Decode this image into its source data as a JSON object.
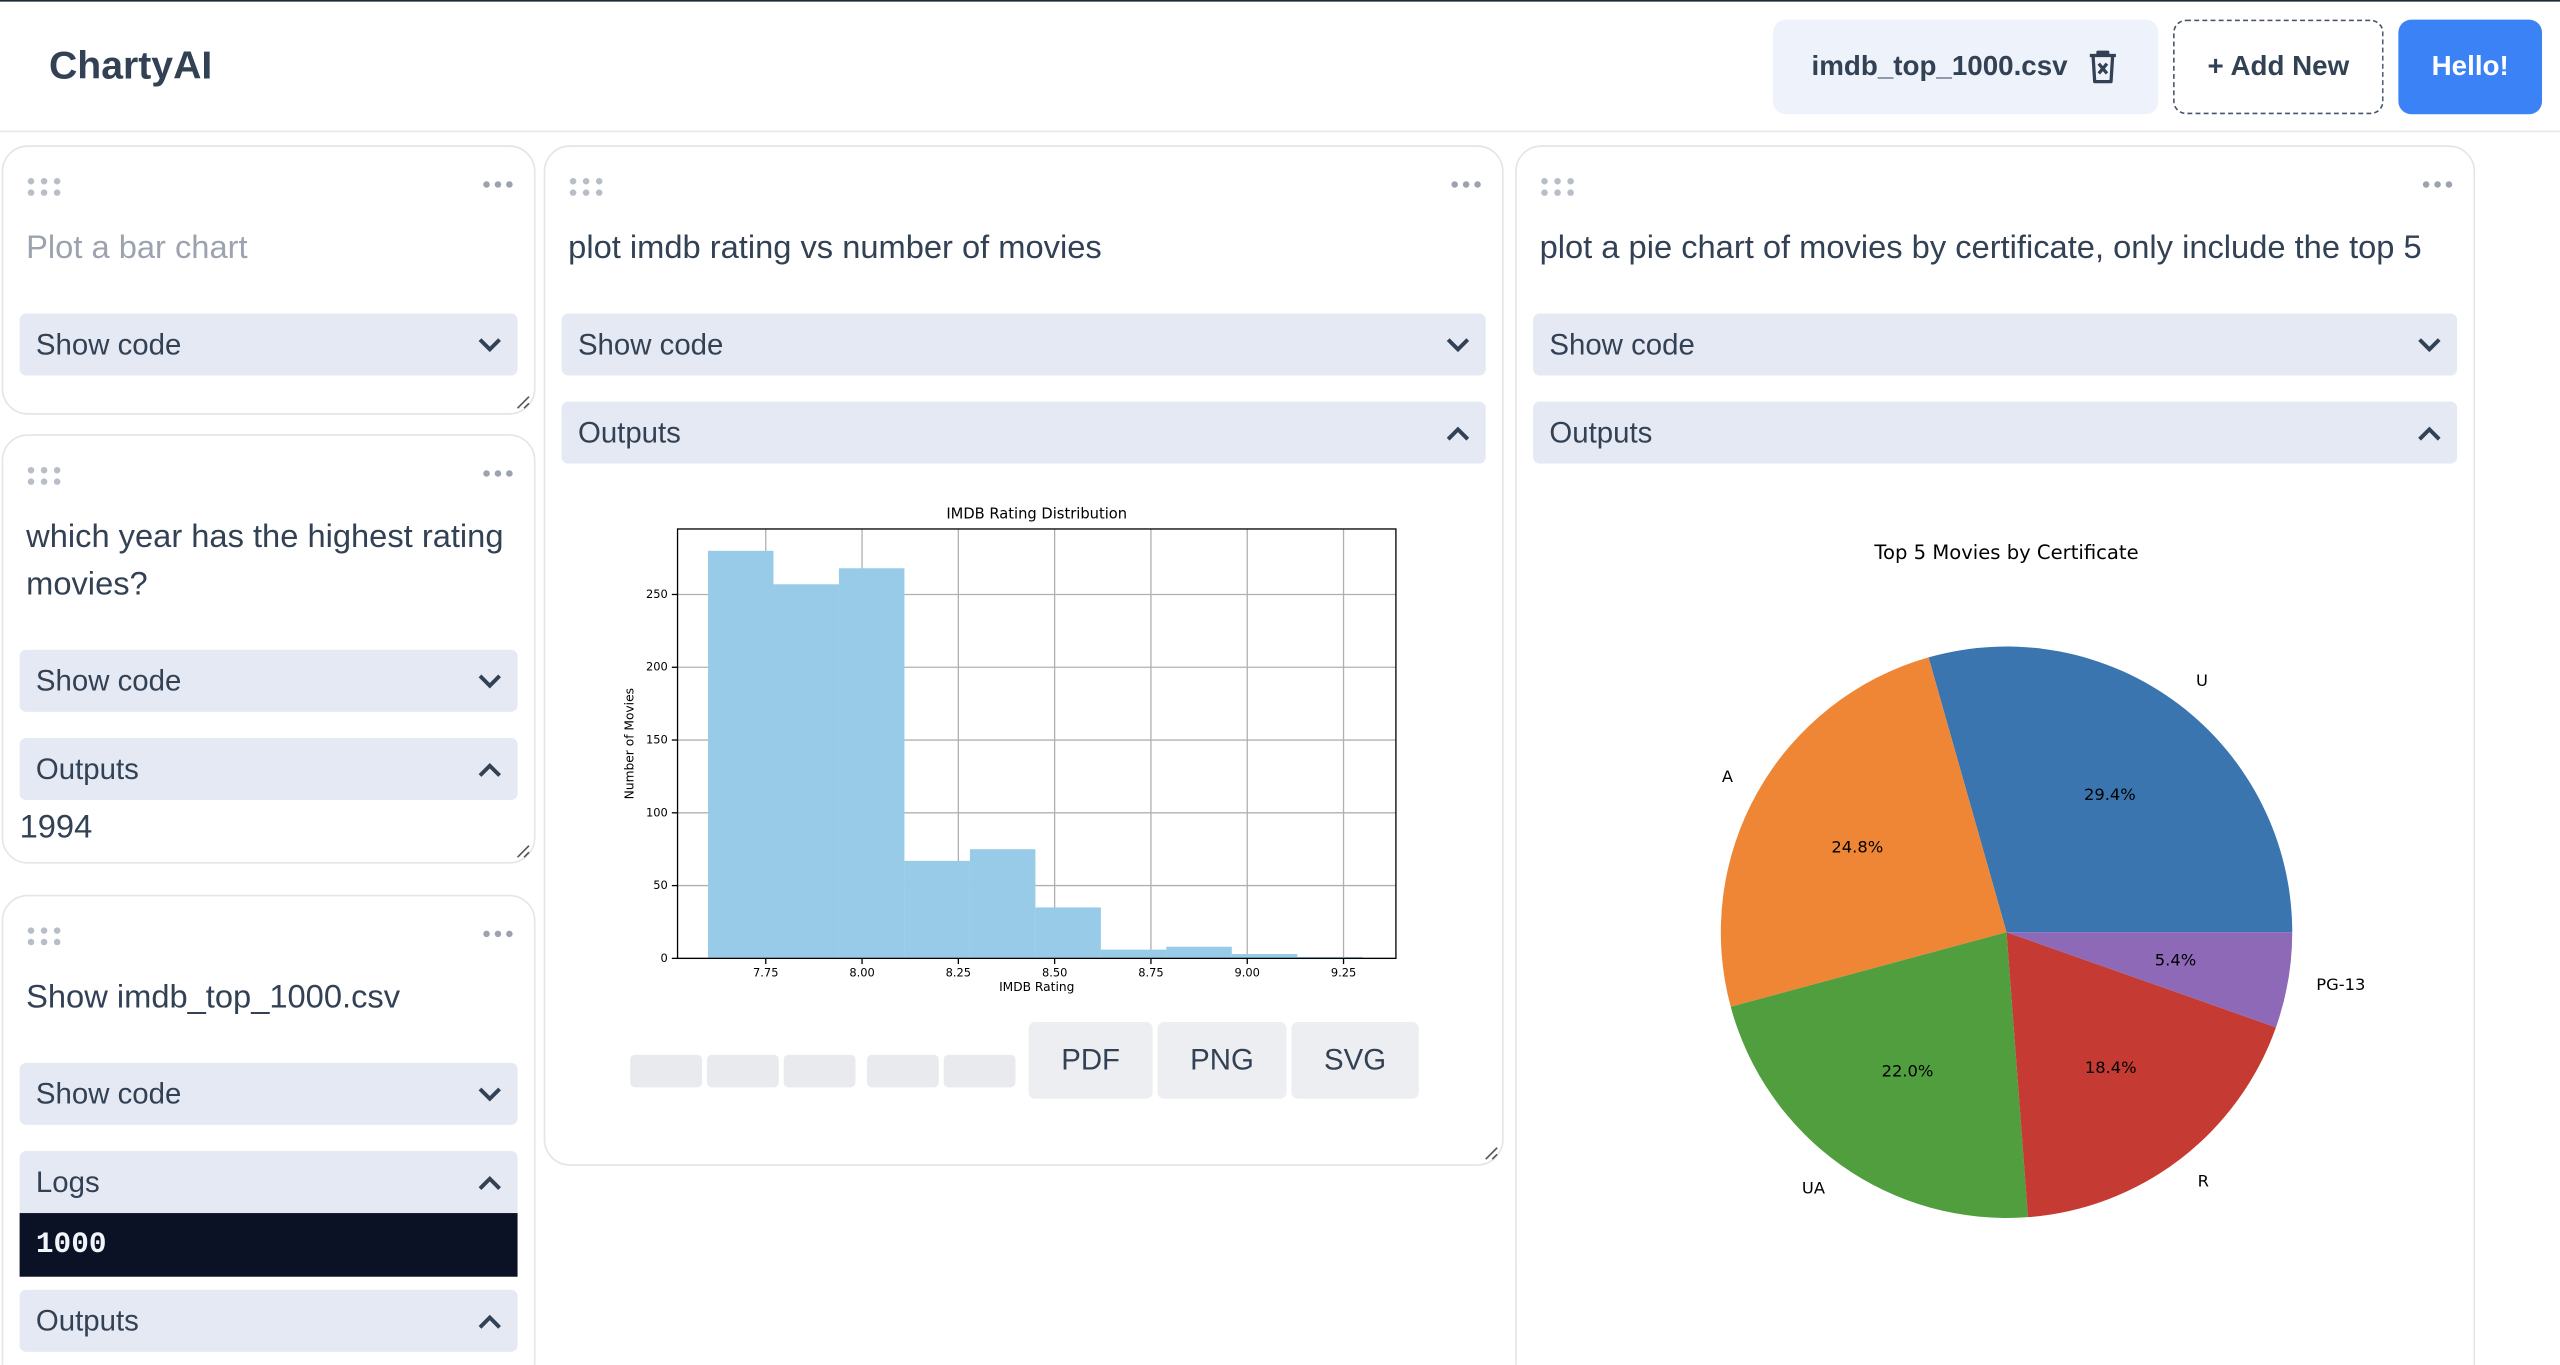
{
  "header": {
    "title": "ChartyAI",
    "file": "imdb_top_1000.csv",
    "add_button": "+ Add New",
    "user_button": "Hello!"
  },
  "cards": [
    {
      "prompt": "Plot a bar chart",
      "show_code": "Show code"
    },
    {
      "prompt": "which year has the highest rating movies?",
      "show_code": "Show code",
      "outputs_label": "Outputs",
      "output": "1994"
    },
    {
      "prompt": "Show imdb_top_1000.csv",
      "show_code": "Show code",
      "logs_label": "Logs",
      "logs": "1000",
      "outputs_label": "Outputs"
    },
    {
      "prompt": "plot imdb rating vs number of movies",
      "show_code": "Show code",
      "outputs_label": "Outputs",
      "export_buttons": [
        "PDF",
        "PNG",
        "SVG"
      ]
    },
    {
      "prompt": "plot a pie chart of movies by certificate, only include the top 5",
      "show_code": "Show code",
      "outputs_label": "Outputs"
    }
  ],
  "chart_data": [
    {
      "type": "histogram",
      "title": "IMDB Rating Distribution",
      "x_label": "IMDB Rating",
      "y_label": "Number of Movies",
      "bins": [
        7.6,
        7.77,
        7.94,
        8.11,
        8.28,
        8.45,
        8.62,
        8.79,
        8.96,
        9.13,
        9.3
      ],
      "values": [
        280,
        257,
        268,
        67,
        75,
        35,
        6,
        8,
        3,
        1
      ],
      "color": "#97cbe8",
      "xlim": [
        7.521,
        9.386
      ],
      "ylim": [
        0,
        295
      ],
      "xticks": [
        7.75,
        {
          "value": 8,
          "label": "8.00"
        },
        8.25,
        {
          "value": 8.5,
          "label": "8.50"
        },
        8.75,
        {
          "value": 9,
          "label": "9.00"
        },
        9.25
      ],
      "yticks": [
        0,
        50,
        100,
        150,
        200,
        250
      ],
      "grid": true
    },
    {
      "type": "pie",
      "title": "Top 5 Movies by Certificate",
      "categories": [
        "U",
        "A",
        "UA",
        "R",
        "PG-13"
      ],
      "values": [
        29.4,
        24.8,
        22.0,
        18.4,
        5.4
      ],
      "value_labels": [
        "29.4%",
        "24.8%",
        "22.0%",
        "18.4%",
        "5.4%"
      ],
      "colors": [
        "#3a75af",
        "#ef8636",
        "#519e3e",
        "#c53a32",
        "#8d69b8"
      ]
    }
  ]
}
